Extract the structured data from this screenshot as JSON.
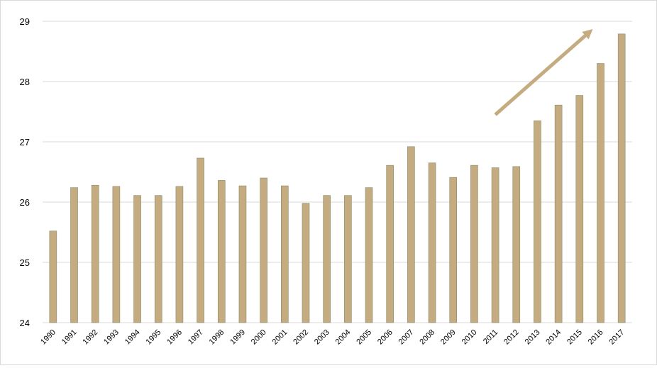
{
  "chart_data": {
    "type": "bar",
    "title": "",
    "xlabel": "",
    "ylabel": "",
    "categories": [
      "1990",
      "1991",
      "1992",
      "1993",
      "1994",
      "1995",
      "1996",
      "1997",
      "1998",
      "1999",
      "2000",
      "2001",
      "2002",
      "2003",
      "2004",
      "2005",
      "2006",
      "2007",
      "2008",
      "2009",
      "2010",
      "2011",
      "2012",
      "2013",
      "2014",
      "2015",
      "2016",
      "2017"
    ],
    "values": [
      25.52,
      26.24,
      26.28,
      26.26,
      26.11,
      26.11,
      26.26,
      26.73,
      26.36,
      26.27,
      26.4,
      26.27,
      25.98,
      26.11,
      26.11,
      26.24,
      26.61,
      26.92,
      26.65,
      26.41,
      26.61,
      26.57,
      26.59,
      27.35,
      27.61,
      27.77,
      28.3,
      28.79
    ],
    "ylim": [
      24,
      29
    ],
    "yticks": [
      24,
      25,
      26,
      27,
      28,
      29
    ],
    "grid": true,
    "legend": "none",
    "annotation": {
      "type": "trend-arrow",
      "from": {
        "category": "2011",
        "y": 27.45
      },
      "to": {
        "category": "2016",
        "y": 28.87
      }
    },
    "colors": {
      "bar": "#c4ab80",
      "bar_edge": "#8a8a6a",
      "grid": "#d9d9d9",
      "arrow": "#c4ab80"
    }
  }
}
